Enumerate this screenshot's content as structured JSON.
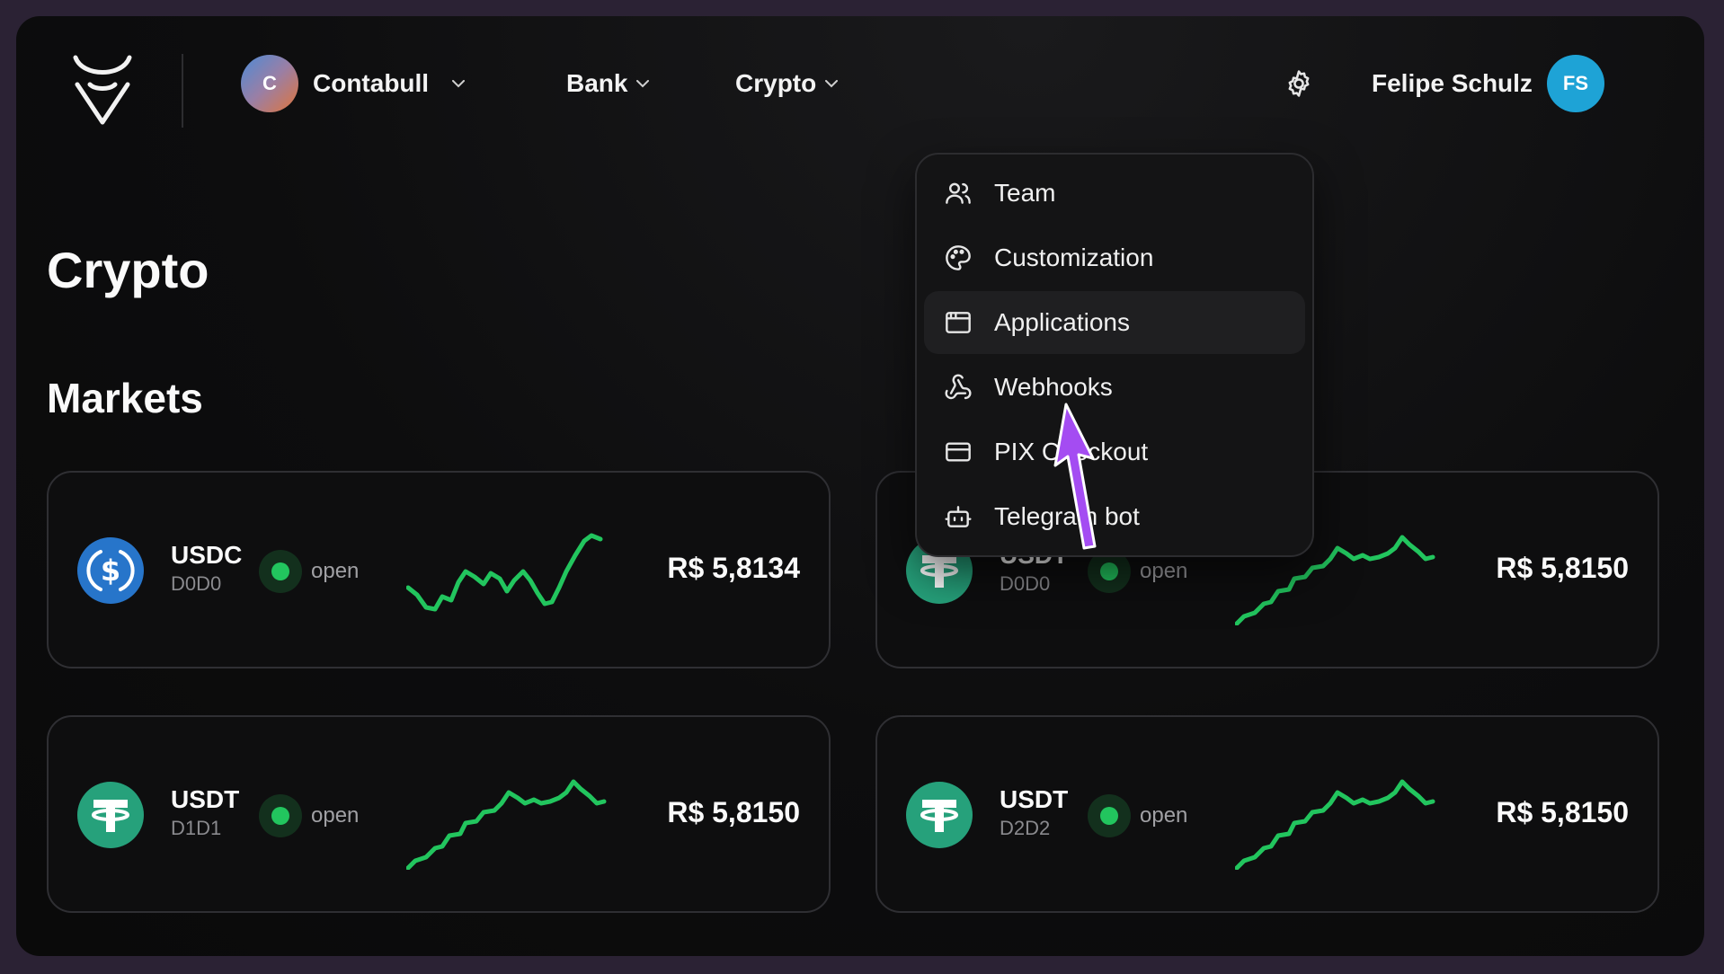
{
  "header": {
    "org": {
      "initial": "C",
      "name": "Contabull"
    },
    "nav": [
      {
        "label": "Bank"
      },
      {
        "label": "Crypto"
      }
    ],
    "user": {
      "name": "Felipe Schulz",
      "initials": "FS"
    }
  },
  "page_title": "Crypto",
  "section_title": "Markets",
  "menu": {
    "items": [
      {
        "label": "Team",
        "icon": "users-icon"
      },
      {
        "label": "Customization",
        "icon": "palette-icon"
      },
      {
        "label": "Applications",
        "icon": "app-window-icon",
        "active": true
      },
      {
        "label": "Webhooks",
        "icon": "webhook-icon"
      },
      {
        "label": "PIX Checkout",
        "icon": "credit-card-icon"
      },
      {
        "label": "Telegram bot",
        "icon": "bot-icon"
      }
    ]
  },
  "markets": [
    {
      "symbol": "USDC",
      "network": "D0D0",
      "status": "open",
      "price": "R$ 5,8134",
      "coin": "usdc",
      "color": "#2775CA"
    },
    {
      "symbol": "USDT",
      "network": "D0D0",
      "status": "open",
      "price": "R$ 5,8150",
      "coin": "usdt",
      "color": "#26A17B"
    },
    {
      "symbol": "USDT",
      "network": "D1D1",
      "status": "open",
      "price": "R$ 5,8150",
      "coin": "usdt",
      "color": "#26A17B"
    },
    {
      "symbol": "USDT",
      "network": "D2D2",
      "status": "open",
      "price": "R$ 5,8150",
      "coin": "usdt",
      "color": "#26A17B"
    }
  ],
  "colors": {
    "accent_green": "#22c55e",
    "cursor_purple": "#a44cf2",
    "user_avatar": "#1ea3d6"
  }
}
